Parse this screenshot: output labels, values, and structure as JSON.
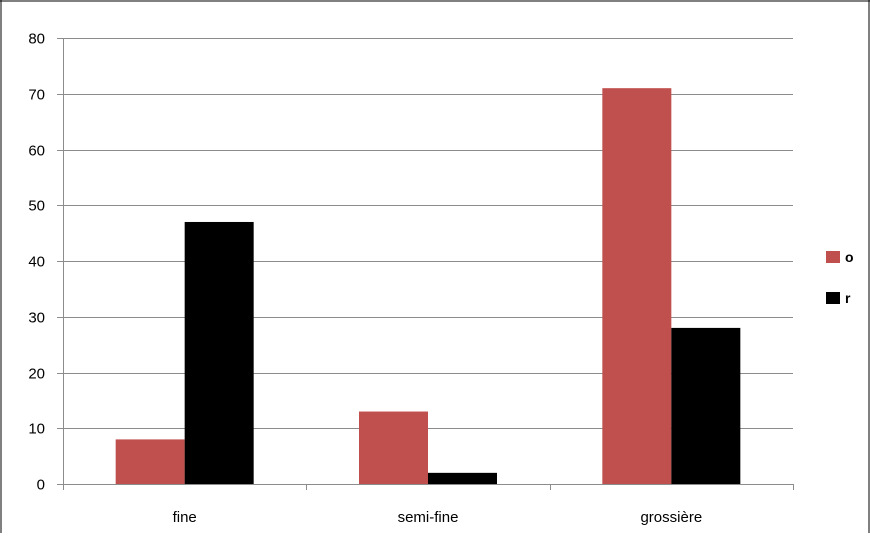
{
  "colors": {
    "background": "#ffffff",
    "gridline": "#8c8c8c",
    "axis": "#8c8c8c",
    "frame": "#000000"
  },
  "chart_data": {
    "type": "bar",
    "title": "",
    "xlabel": "",
    "ylabel": "",
    "categories": [
      "fine",
      "semi-fine",
      "grossière"
    ],
    "series": [
      {
        "name": "o",
        "color": "#c0504d",
        "values": [
          8,
          13,
          71
        ]
      },
      {
        "name": "r",
        "color": "#000000",
        "values": [
          47,
          2,
          28
        ]
      }
    ],
    "ylim": [
      0,
      80
    ],
    "yticks": [
      "0",
      "10",
      "20",
      "30",
      "40",
      "50",
      "60",
      "70",
      "80"
    ],
    "grid": true,
    "legend": "right"
  }
}
